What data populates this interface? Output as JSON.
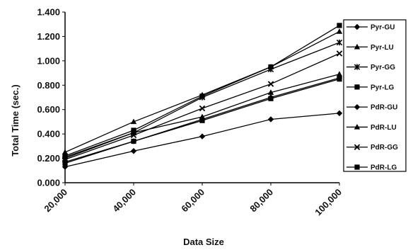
{
  "chart_data": {
    "type": "line",
    "title": "",
    "xlabel": "Data Size",
    "ylabel": "Total Time (sec.)",
    "x": [
      "20,000",
      "40,000",
      "60,000",
      "80,000",
      "100,000"
    ],
    "ylim": [
      0,
      1.4
    ],
    "yticks": [
      "0.000",
      "0.200",
      "0.400",
      "0.600",
      "0.800",
      "1.000",
      "1.200",
      "1.400"
    ],
    "legend_position": "right",
    "grid": false,
    "series": [
      {
        "name": "Pyr-GU",
        "marker": "diamond",
        "values": [
          0.17,
          0.34,
          0.52,
          0.7,
          0.86
        ]
      },
      {
        "name": "Pyr-LU",
        "marker": "triangle",
        "values": [
          0.25,
          0.5,
          0.72,
          0.95,
          1.24
        ]
      },
      {
        "name": "Pyr-GG",
        "marker": "star",
        "values": [
          0.2,
          0.41,
          0.7,
          0.93,
          1.15
        ]
      },
      {
        "name": "Pyr-LG",
        "marker": "square",
        "values": [
          0.16,
          0.34,
          0.51,
          0.69,
          0.85
        ]
      },
      {
        "name": "PdR-GU",
        "marker": "diamond",
        "values": [
          0.13,
          0.26,
          0.38,
          0.52,
          0.57
        ]
      },
      {
        "name": "PdR-LU",
        "marker": "triangle",
        "values": [
          0.21,
          0.41,
          0.54,
          0.74,
          0.89
        ]
      },
      {
        "name": "PdR-GG",
        "marker": "x",
        "values": [
          0.19,
          0.39,
          0.61,
          0.81,
          1.06
        ]
      },
      {
        "name": "PdR-LG",
        "marker": "square",
        "values": [
          0.22,
          0.43,
          0.71,
          0.95,
          1.29
        ]
      }
    ]
  }
}
